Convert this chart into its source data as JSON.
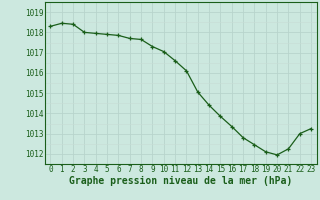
{
  "x": [
    0,
    1,
    2,
    3,
    4,
    5,
    6,
    7,
    8,
    9,
    10,
    11,
    12,
    13,
    14,
    15,
    16,
    17,
    18,
    19,
    20,
    21,
    22,
    23
  ],
  "y": [
    1018.3,
    1018.45,
    1018.4,
    1018.0,
    1017.95,
    1017.9,
    1017.85,
    1017.7,
    1017.65,
    1017.3,
    1017.05,
    1016.6,
    1016.1,
    1015.05,
    1014.4,
    1013.85,
    1013.35,
    1012.8,
    1012.45,
    1012.1,
    1011.95,
    1012.25,
    1013.0,
    1013.25
  ],
  "line_color": "#1a5e1a",
  "marker": "+",
  "bg_color": "#cce8df",
  "grid_color": "#b8d4cc",
  "grid_color_minor": "#c8ddd6",
  "xlabel": "Graphe pression niveau de la mer (hPa)",
  "xlabel_fontsize": 7,
  "ylabel_ticks": [
    1012,
    1013,
    1014,
    1015,
    1016,
    1017,
    1018,
    1019
  ],
  "ylim": [
    1011.5,
    1019.5
  ],
  "xlim": [
    -0.5,
    23.5
  ],
  "xtick_labels": [
    "0",
    "1",
    "2",
    "3",
    "4",
    "5",
    "6",
    "7",
    "8",
    "9",
    "10",
    "11",
    "12",
    "13",
    "14",
    "15",
    "16",
    "17",
    "18",
    "19",
    "20",
    "21",
    "22",
    "23"
  ],
  "tick_fontsize": 5.5,
  "tick_color": "#1a5e1a"
}
